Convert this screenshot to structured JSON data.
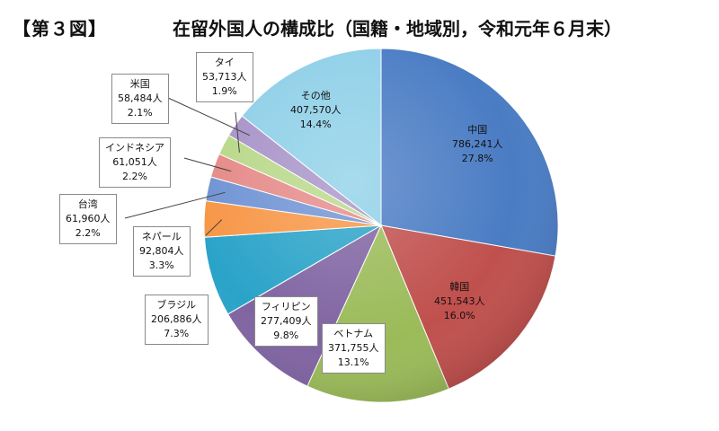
{
  "figure_label": "【第３図】",
  "title": "在留外国人の構成比（国籍・地域別，令和元年６月末）",
  "chart_data": {
    "type": "pie",
    "title": "在留外国人の構成比（国籍・地域別，令和元年６月末）",
    "unit": "人",
    "start": "12 o'clock, clockwise",
    "slices": [
      {
        "name": "中国",
        "value": "786,241人",
        "count": 786241,
        "percent_label": "27.8%",
        "percent": 27.8,
        "color": "#4a7cc4"
      },
      {
        "name": "韓国",
        "value": "451,543人",
        "count": 451543,
        "percent_label": "16.0%",
        "percent": 16.0,
        "color": "#c0504d"
      },
      {
        "name": "ベトナム",
        "value": "371,755人",
        "count": 371755,
        "percent_label": "13.1%",
        "percent": 13.1,
        "color": "#9bbb59"
      },
      {
        "name": "フィリピン",
        "value": "277,409人",
        "count": 277409,
        "percent_label": "9.8%",
        "percent": 9.8,
        "color": "#8064a2"
      },
      {
        "name": "ブラジル",
        "value": "206,886人",
        "count": 206886,
        "percent_label": "7.3%",
        "percent": 7.3,
        "color": "#2aa3c8"
      },
      {
        "name": "ネパール",
        "value": "92,804人",
        "count": 92804,
        "percent_label": "3.3%",
        "percent": 3.3,
        "color": "#f79646"
      },
      {
        "name": "台湾",
        "value": "61,960人",
        "count": 61960,
        "percent_label": "2.2%",
        "percent": 2.2,
        "color": "#6f93d4"
      },
      {
        "name": "インドネシア",
        "value": "61,051人",
        "count": 61051,
        "percent_label": "2.2%",
        "percent": 2.2,
        "color": "#e58a88"
      },
      {
        "name": "タイ",
        "value": "53,713人",
        "count": 53713,
        "percent_label": "1.9%",
        "percent": 1.9,
        "color": "#b9d889"
      },
      {
        "name": "米国",
        "value": "58,484人",
        "count": 58484,
        "percent_label": "2.1%",
        "percent": 2.1,
        "color": "#a893c8"
      },
      {
        "name": "その他",
        "value": "407,570人",
        "count": 407570,
        "percent_label": "14.4%",
        "percent": 14.4,
        "color": "#8fd0e8"
      }
    ]
  }
}
